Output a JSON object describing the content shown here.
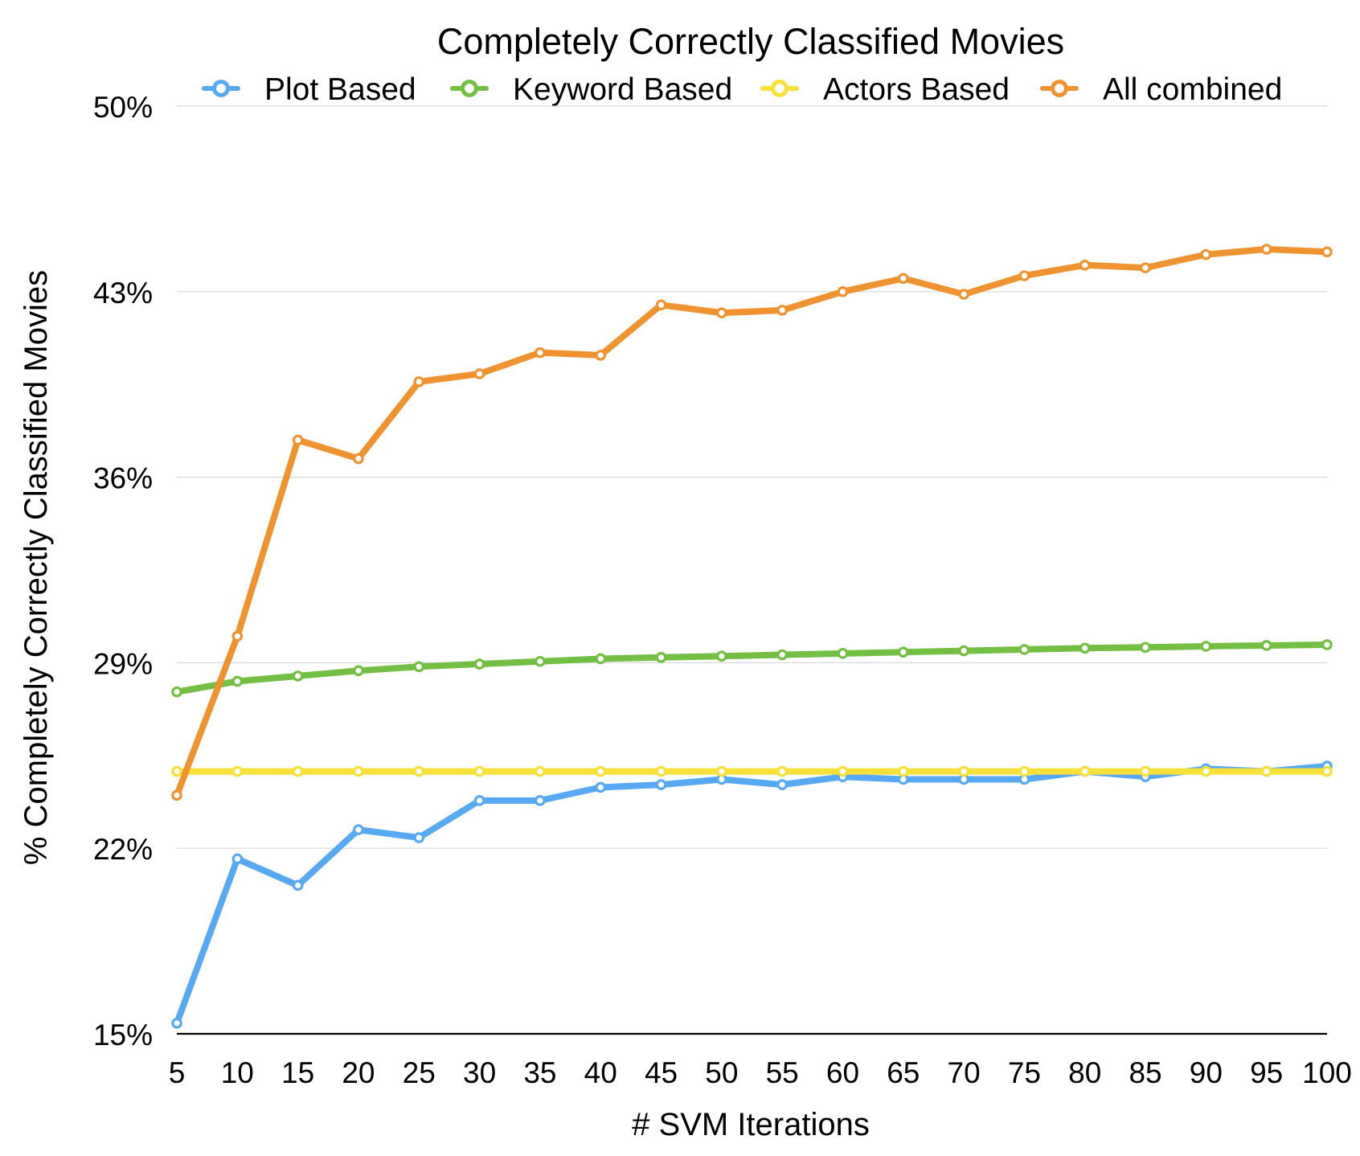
{
  "chart_data": {
    "type": "line",
    "title": "Completely Correctly Classified Movies",
    "xlabel": "# SVM Iterations",
    "ylabel": "% Completely Correctly Classified Movies",
    "x": [
      5,
      10,
      15,
      20,
      25,
      30,
      35,
      40,
      45,
      50,
      55,
      60,
      65,
      70,
      75,
      80,
      85,
      90,
      95,
      100
    ],
    "x_tick_labels": [
      "5",
      "10",
      "15",
      "20",
      "25",
      "30",
      "35",
      "40",
      "45",
      "50",
      "55",
      "60",
      "65",
      "70",
      "75",
      "80",
      "85",
      "90",
      "95",
      "100"
    ],
    "ylim": [
      15,
      50
    ],
    "y_ticks": [
      15,
      22,
      29,
      36,
      43,
      50
    ],
    "y_tick_labels": [
      "15%",
      "22%",
      "29%",
      "36%",
      "43%",
      "50%"
    ],
    "grid": "horizontal",
    "legend_placement": "top",
    "series": [
      {
        "name": "Plot Based",
        "color": "#58a9f4",
        "values": [
          15.4,
          21.6,
          20.6,
          22.7,
          22.4,
          23.8,
          23.8,
          24.3,
          24.4,
          24.6,
          24.4,
          24.7,
          24.6,
          24.6,
          24.6,
          24.9,
          24.7,
          25.0,
          24.9,
          25.1
        ]
      },
      {
        "name": "Keyword Based",
        "color": "#72bf44",
        "values": [
          27.9,
          28.3,
          28.5,
          28.7,
          28.85,
          28.95,
          29.05,
          29.15,
          29.2,
          29.25,
          29.3,
          29.35,
          29.4,
          29.45,
          29.5,
          29.55,
          29.58,
          29.62,
          29.65,
          29.68
        ]
      },
      {
        "name": "Actors Based",
        "color": "#f7e03a",
        "values": [
          24.9,
          24.9,
          24.9,
          24.9,
          24.9,
          24.9,
          24.9,
          24.9,
          24.9,
          24.9,
          24.9,
          24.9,
          24.9,
          24.9,
          24.9,
          24.9,
          24.9,
          24.9,
          24.9,
          24.9
        ]
      },
      {
        "name": "All combined",
        "color": "#ef9330",
        "values": [
          24.0,
          30.0,
          37.4,
          36.7,
          39.6,
          39.9,
          40.7,
          40.6,
          42.5,
          42.2,
          42.3,
          43.0,
          43.5,
          42.9,
          43.6,
          44.0,
          43.9,
          44.4,
          44.6,
          44.5
        ]
      }
    ]
  }
}
